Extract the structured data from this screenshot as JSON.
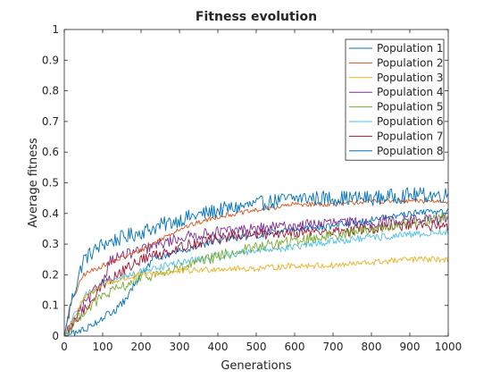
{
  "chart_data": {
    "type": "line",
    "title": "Fitness evolution",
    "xlabel": "Generations",
    "ylabel": "Average fitness",
    "xlim": [
      0,
      1000
    ],
    "ylim": [
      0,
      1
    ],
    "xticks": [
      "0",
      "100",
      "200",
      "300",
      "400",
      "500",
      "600",
      "700",
      "800",
      "900",
      "1000"
    ],
    "yticks": [
      "0",
      "0.1",
      "0.2",
      "0.3",
      "0.4",
      "0.5",
      "0.6",
      "0.7",
      "0.8",
      "0.9",
      "1"
    ],
    "grid": false,
    "legend_position": "top-right",
    "series": [
      {
        "name": "Population 1",
        "color": "#0072BD",
        "noise": 0.025,
        "points": [
          [
            0,
            0.0
          ],
          [
            20,
            0.12
          ],
          [
            50,
            0.25
          ],
          [
            100,
            0.3
          ],
          [
            200,
            0.34
          ],
          [
            300,
            0.38
          ],
          [
            400,
            0.41
          ],
          [
            500,
            0.43
          ],
          [
            600,
            0.45
          ],
          [
            700,
            0.45
          ],
          [
            800,
            0.45
          ],
          [
            900,
            0.46
          ],
          [
            1000,
            0.46
          ]
        ]
      },
      {
        "name": "Population 2",
        "color": "#D95319",
        "noise": 0.008,
        "points": [
          [
            0,
            0.0
          ],
          [
            15,
            0.1
          ],
          [
            50,
            0.2
          ],
          [
            100,
            0.23
          ],
          [
            200,
            0.28
          ],
          [
            300,
            0.35
          ],
          [
            400,
            0.39
          ],
          [
            500,
            0.41
          ],
          [
            600,
            0.43
          ],
          [
            700,
            0.43
          ],
          [
            800,
            0.44
          ],
          [
            900,
            0.44
          ],
          [
            1000,
            0.44
          ]
        ]
      },
      {
        "name": "Population 3",
        "color": "#EDB120",
        "noise": 0.01,
        "points": [
          [
            0,
            0.0
          ],
          [
            50,
            0.12
          ],
          [
            100,
            0.17
          ],
          [
            200,
            0.2
          ],
          [
            300,
            0.21
          ],
          [
            400,
            0.22
          ],
          [
            500,
            0.22
          ],
          [
            600,
            0.23
          ],
          [
            700,
            0.23
          ],
          [
            800,
            0.24
          ],
          [
            900,
            0.25
          ],
          [
            1000,
            0.25
          ]
        ]
      },
      {
        "name": "Population 4",
        "color": "#7E2F8E",
        "noise": 0.018,
        "points": [
          [
            0,
            0.0
          ],
          [
            50,
            0.1
          ],
          [
            100,
            0.18
          ],
          [
            120,
            0.25
          ],
          [
            200,
            0.28
          ],
          [
            300,
            0.32
          ],
          [
            400,
            0.34
          ],
          [
            500,
            0.35
          ],
          [
            600,
            0.36
          ],
          [
            700,
            0.37
          ],
          [
            800,
            0.37
          ],
          [
            900,
            0.38
          ],
          [
            1000,
            0.38
          ]
        ]
      },
      {
        "name": "Population 5",
        "color": "#77AC30",
        "noise": 0.018,
        "points": [
          [
            0,
            0.0
          ],
          [
            50,
            0.08
          ],
          [
            100,
            0.13
          ],
          [
            200,
            0.19
          ],
          [
            300,
            0.22
          ],
          [
            400,
            0.26
          ],
          [
            500,
            0.29
          ],
          [
            600,
            0.31
          ],
          [
            700,
            0.33
          ],
          [
            800,
            0.35
          ],
          [
            900,
            0.37
          ],
          [
            1000,
            0.39
          ]
        ]
      },
      {
        "name": "Population 6",
        "color": "#4DBEEE",
        "noise": 0.012,
        "points": [
          [
            0,
            0.0
          ],
          [
            50,
            0.13
          ],
          [
            100,
            0.17
          ],
          [
            200,
            0.21
          ],
          [
            300,
            0.24
          ],
          [
            400,
            0.26
          ],
          [
            500,
            0.28
          ],
          [
            600,
            0.29
          ],
          [
            700,
            0.31
          ],
          [
            800,
            0.32
          ],
          [
            900,
            0.33
          ],
          [
            1000,
            0.34
          ]
        ]
      },
      {
        "name": "Population 7",
        "color": "#A2142F",
        "noise": 0.018,
        "points": [
          [
            0,
            0.0
          ],
          [
            50,
            0.08
          ],
          [
            100,
            0.17
          ],
          [
            200,
            0.25
          ],
          [
            300,
            0.29
          ],
          [
            400,
            0.32
          ],
          [
            500,
            0.33
          ],
          [
            600,
            0.34
          ],
          [
            700,
            0.34
          ],
          [
            800,
            0.35
          ],
          [
            900,
            0.36
          ],
          [
            1000,
            0.36
          ]
        ]
      },
      {
        "name": "Population 8",
        "color": "#0072BD",
        "noise": 0.012,
        "points": [
          [
            0,
            0.0
          ],
          [
            50,
            0.02
          ],
          [
            100,
            0.06
          ],
          [
            140,
            0.09
          ],
          [
            160,
            0.12
          ],
          [
            200,
            0.2
          ],
          [
            230,
            0.25
          ],
          [
            300,
            0.28
          ],
          [
            400,
            0.31
          ],
          [
            500,
            0.33
          ],
          [
            600,
            0.35
          ],
          [
            700,
            0.36
          ],
          [
            800,
            0.38
          ],
          [
            900,
            0.4
          ],
          [
            1000,
            0.41
          ]
        ]
      }
    ]
  }
}
